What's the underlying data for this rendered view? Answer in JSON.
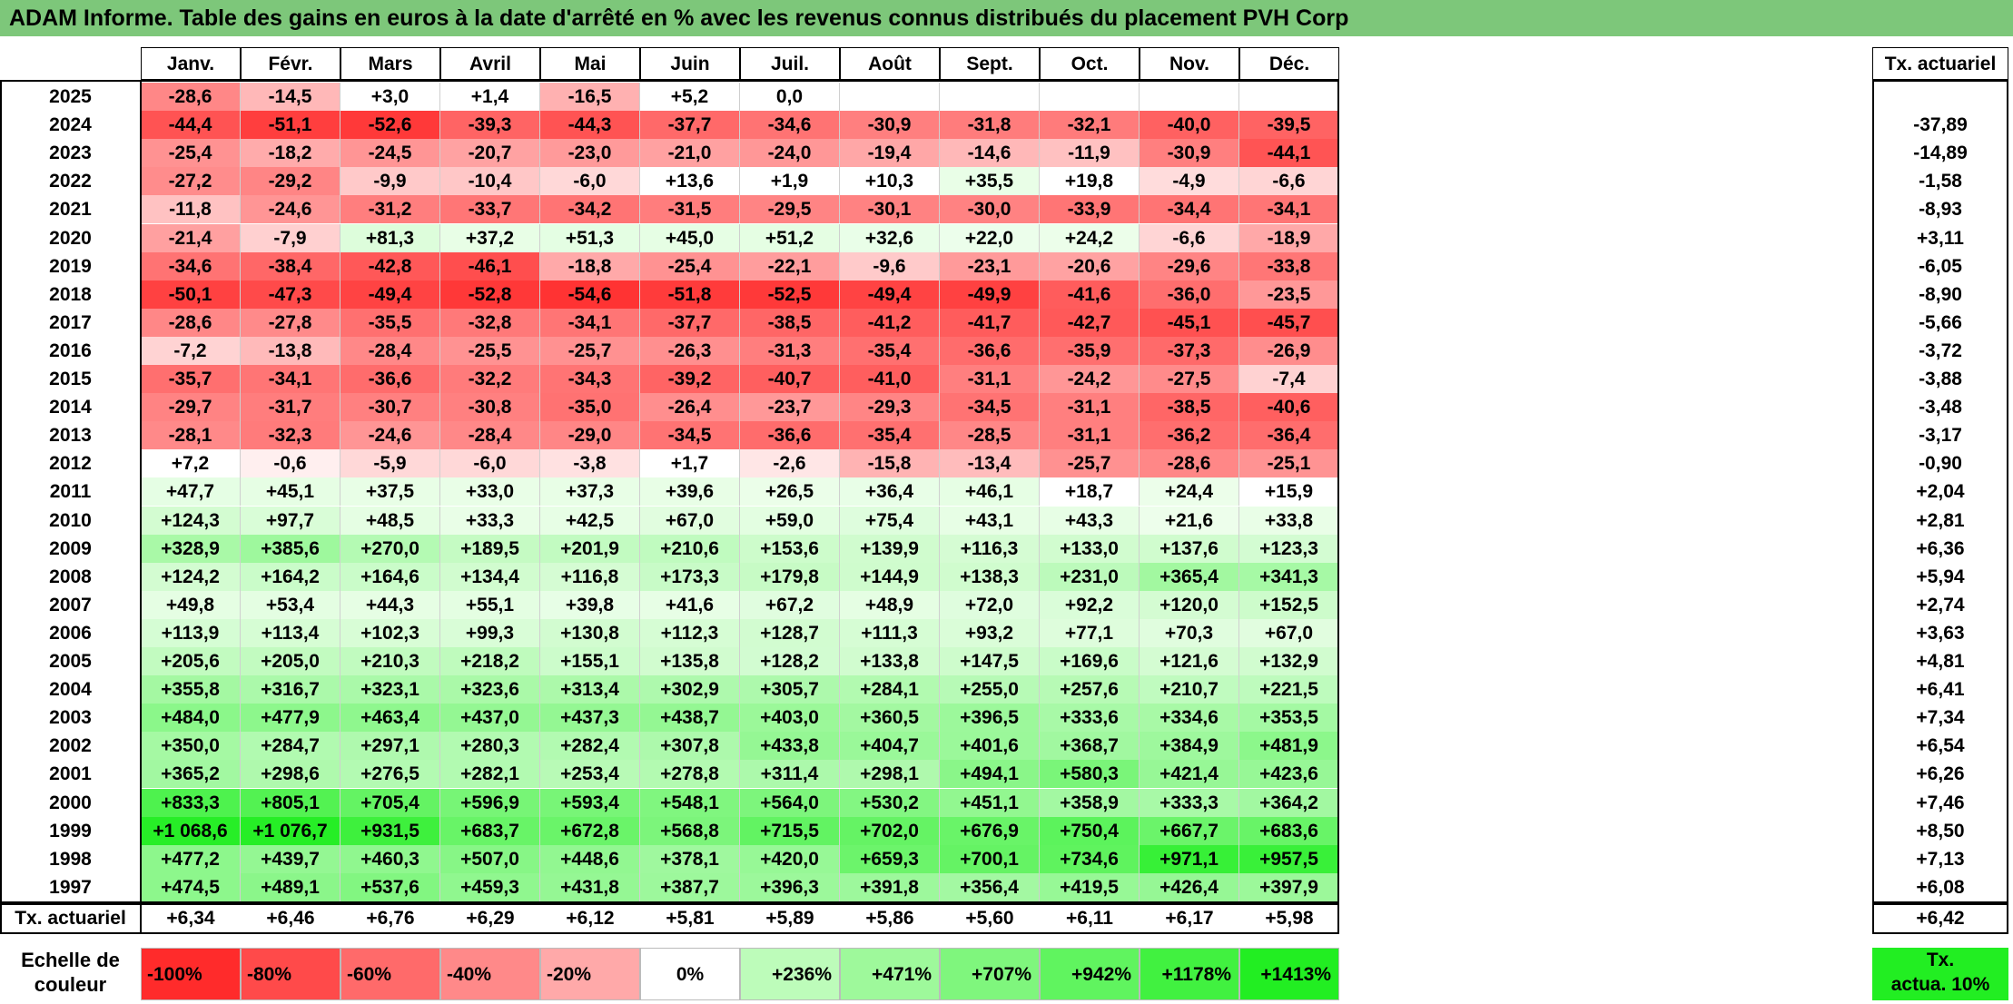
{
  "title": "ADAM Informe. Table des gains en euros à la date d'arrêté en % avec les revenus connus distribués du placement PVH Corp",
  "chart_data": {
    "type": "heatmap",
    "title": "ADAM Informe. Table des gains en euros à la date d'arrêté en % avec les revenus connus distribués du placement PVH Corp",
    "columns": [
      "Janv.",
      "Févr.",
      "Mars",
      "Avril",
      "Mai",
      "Juin",
      "Juil.",
      "Août",
      "Sept.",
      "Oct.",
      "Nov.",
      "Déc."
    ],
    "rate_header": "Tx. actuariel",
    "rows": [
      {
        "year": "2025",
        "values": [
          "-28,6",
          "-14,5",
          "+3,0",
          "+1,4",
          "-16,5",
          "+5,2",
          "0,0",
          "",
          "",
          "",
          "",
          ""
        ],
        "rate": ""
      },
      {
        "year": "2024",
        "values": [
          "-44,4",
          "-51,1",
          "-52,6",
          "-39,3",
          "-44,3",
          "-37,7",
          "-34,6",
          "-30,9",
          "-31,8",
          "-32,1",
          "-40,0",
          "-39,5"
        ],
        "rate": "-37,89"
      },
      {
        "year": "2023",
        "values": [
          "-25,4",
          "-18,2",
          "-24,5",
          "-20,7",
          "-23,0",
          "-21,0",
          "-24,0",
          "-19,4",
          "-14,6",
          "-11,9",
          "-30,9",
          "-44,1"
        ],
        "rate": "-14,89"
      },
      {
        "year": "2022",
        "values": [
          "-27,2",
          "-29,2",
          "-9,9",
          "-10,4",
          "-6,0",
          "+13,6",
          "+1,9",
          "+10,3",
          "+35,5",
          "+19,8",
          "-4,9",
          "-6,6"
        ],
        "rate": "-1,58"
      },
      {
        "year": "2021",
        "values": [
          "-11,8",
          "-24,6",
          "-31,2",
          "-33,7",
          "-34,2",
          "-31,5",
          "-29,5",
          "-30,1",
          "-30,0",
          "-33,9",
          "-34,4",
          "-34,1"
        ],
        "rate": "-8,93"
      },
      {
        "year": "2020",
        "values": [
          "-21,4",
          "-7,9",
          "+81,3",
          "+37,2",
          "+51,3",
          "+45,0",
          "+51,2",
          "+32,6",
          "+22,0",
          "+24,2",
          "-6,6",
          "-18,9"
        ],
        "rate": "+3,11"
      },
      {
        "year": "2019",
        "values": [
          "-34,6",
          "-38,4",
          "-42,8",
          "-46,1",
          "-18,8",
          "-25,4",
          "-22,1",
          "-9,6",
          "-23,1",
          "-20,6",
          "-29,6",
          "-33,8"
        ],
        "rate": "-6,05"
      },
      {
        "year": "2018",
        "values": [
          "-50,1",
          "-47,3",
          "-49,4",
          "-52,8",
          "-54,6",
          "-51,8",
          "-52,5",
          "-49,4",
          "-49,9",
          "-41,6",
          "-36,0",
          "-23,5"
        ],
        "rate": "-8,90"
      },
      {
        "year": "2017",
        "values": [
          "-28,6",
          "-27,8",
          "-35,5",
          "-32,8",
          "-34,1",
          "-37,7",
          "-38,5",
          "-41,2",
          "-41,7",
          "-42,7",
          "-45,1",
          "-45,7"
        ],
        "rate": "-5,66"
      },
      {
        "year": "2016",
        "values": [
          "-7,2",
          "-13,8",
          "-28,4",
          "-25,5",
          "-25,7",
          "-26,3",
          "-31,3",
          "-35,4",
          "-36,6",
          "-35,9",
          "-37,3",
          "-26,9"
        ],
        "rate": "-3,72"
      },
      {
        "year": "2015",
        "values": [
          "-35,7",
          "-34,1",
          "-36,6",
          "-32,2",
          "-34,3",
          "-39,2",
          "-40,7",
          "-41,0",
          "-31,1",
          "-24,2",
          "-27,5",
          "-7,4"
        ],
        "rate": "-3,88"
      },
      {
        "year": "2014",
        "values": [
          "-29,7",
          "-31,7",
          "-30,7",
          "-30,8",
          "-35,0",
          "-26,4",
          "-23,7",
          "-29,3",
          "-34,5",
          "-31,1",
          "-38,5",
          "-40,6"
        ],
        "rate": "-3,48"
      },
      {
        "year": "2013",
        "values": [
          "-28,1",
          "-32,3",
          "-24,6",
          "-28,4",
          "-29,0",
          "-34,5",
          "-36,6",
          "-35,4",
          "-28,5",
          "-31,1",
          "-36,2",
          "-36,4"
        ],
        "rate": "-3,17"
      },
      {
        "year": "2012",
        "values": [
          "+7,2",
          "-0,6",
          "-5,9",
          "-6,0",
          "-3,8",
          "+1,7",
          "-2,6",
          "-15,8",
          "-13,4",
          "-25,7",
          "-28,6",
          "-25,1"
        ],
        "rate": "-0,90"
      },
      {
        "year": "2011",
        "values": [
          "+47,7",
          "+45,1",
          "+37,5",
          "+33,0",
          "+37,3",
          "+39,6",
          "+26,5",
          "+36,4",
          "+46,1",
          "+18,7",
          "+24,4",
          "+15,9"
        ],
        "rate": "+2,04"
      },
      {
        "year": "2010",
        "values": [
          "+124,3",
          "+97,7",
          "+48,5",
          "+33,3",
          "+42,5",
          "+67,0",
          "+59,0",
          "+75,4",
          "+43,1",
          "+43,3",
          "+21,6",
          "+33,8"
        ],
        "rate": "+2,81"
      },
      {
        "year": "2009",
        "values": [
          "+328,9",
          "+385,6",
          "+270,0",
          "+189,5",
          "+201,9",
          "+210,6",
          "+153,6",
          "+139,9",
          "+116,3",
          "+133,0",
          "+137,6",
          "+123,3"
        ],
        "rate": "+6,36"
      },
      {
        "year": "2008",
        "values": [
          "+124,2",
          "+164,2",
          "+164,6",
          "+134,4",
          "+116,8",
          "+173,3",
          "+179,8",
          "+144,9",
          "+138,3",
          "+231,0",
          "+365,4",
          "+341,3"
        ],
        "rate": "+5,94"
      },
      {
        "year": "2007",
        "values": [
          "+49,8",
          "+53,4",
          "+44,3",
          "+55,1",
          "+39,8",
          "+41,6",
          "+67,2",
          "+48,9",
          "+72,0",
          "+92,2",
          "+120,0",
          "+152,5"
        ],
        "rate": "+2,74"
      },
      {
        "year": "2006",
        "values": [
          "+113,9",
          "+113,4",
          "+102,3",
          "+99,3",
          "+130,8",
          "+112,3",
          "+128,7",
          "+111,3",
          "+93,2",
          "+77,1",
          "+70,3",
          "+67,0"
        ],
        "rate": "+3,63"
      },
      {
        "year": "2005",
        "values": [
          "+205,6",
          "+205,0",
          "+210,3",
          "+218,2",
          "+155,1",
          "+135,8",
          "+128,2",
          "+133,8",
          "+147,5",
          "+169,6",
          "+121,6",
          "+132,9"
        ],
        "rate": "+4,81"
      },
      {
        "year": "2004",
        "values": [
          "+355,8",
          "+316,7",
          "+323,1",
          "+323,6",
          "+313,4",
          "+302,9",
          "+305,7",
          "+284,1",
          "+255,0",
          "+257,6",
          "+210,7",
          "+221,5"
        ],
        "rate": "+6,41"
      },
      {
        "year": "2003",
        "values": [
          "+484,0",
          "+477,9",
          "+463,4",
          "+437,0",
          "+437,3",
          "+438,7",
          "+403,0",
          "+360,5",
          "+396,5",
          "+333,6",
          "+334,6",
          "+353,5"
        ],
        "rate": "+7,34"
      },
      {
        "year": "2002",
        "values": [
          "+350,0",
          "+284,7",
          "+297,1",
          "+280,3",
          "+282,4",
          "+307,8",
          "+433,8",
          "+404,7",
          "+401,6",
          "+368,7",
          "+384,9",
          "+481,9"
        ],
        "rate": "+6,54"
      },
      {
        "year": "2001",
        "values": [
          "+365,2",
          "+298,6",
          "+276,5",
          "+282,1",
          "+253,4",
          "+278,8",
          "+311,4",
          "+298,1",
          "+494,1",
          "+580,3",
          "+421,4",
          "+423,6"
        ],
        "rate": "+6,26"
      },
      {
        "year": "2000",
        "values": [
          "+833,3",
          "+805,1",
          "+705,4",
          "+596,9",
          "+593,4",
          "+548,1",
          "+564,0",
          "+530,2",
          "+451,1",
          "+358,9",
          "+333,3",
          "+364,2"
        ],
        "rate": "+7,46"
      },
      {
        "year": "1999",
        "values": [
          "+1 068,6",
          "+1 076,7",
          "+931,5",
          "+683,7",
          "+672,8",
          "+568,8",
          "+715,5",
          "+702,0",
          "+676,9",
          "+750,4",
          "+667,7",
          "+683,6"
        ],
        "rate": "+8,50"
      },
      {
        "year": "1998",
        "values": [
          "+477,2",
          "+439,7",
          "+460,3",
          "+507,0",
          "+448,6",
          "+378,1",
          "+420,0",
          "+659,3",
          "+700,1",
          "+734,6",
          "+971,1",
          "+957,5"
        ],
        "rate": "+7,13"
      },
      {
        "year": "1997",
        "values": [
          "+474,5",
          "+489,1",
          "+537,6",
          "+459,3",
          "+431,8",
          "+387,7",
          "+396,3",
          "+391,8",
          "+356,4",
          "+419,5",
          "+426,4",
          "+397,9"
        ],
        "rate": "+6,08"
      }
    ],
    "footer": {
      "label": "Tx. actuariel",
      "values": [
        "+6,34",
        "+6,46",
        "+6,76",
        "+6,29",
        "+6,12",
        "+5,81",
        "+5,89",
        "+5,86",
        "+5,60",
        "+6,11",
        "+6,17",
        "+5,98"
      ],
      "rate": "+6,42"
    },
    "color_scale": {
      "label_line1": "Echelle de",
      "label_line2": "couleur",
      "stops": [
        {
          "label": "-100%",
          "value": -100
        },
        {
          "label": "-80%",
          "value": -80
        },
        {
          "label": "-60%",
          "value": -60
        },
        {
          "label": "-40%",
          "value": -40
        },
        {
          "label": "-20%",
          "value": -20
        },
        {
          "label": "0%",
          "value": 0
        },
        {
          "label": "+236%",
          "value": 236
        },
        {
          "label": "+471%",
          "value": 471
        },
        {
          "label": "+707%",
          "value": 707
        },
        {
          "label": "+942%",
          "value": 942
        },
        {
          "label": "+1178%",
          "value": 1178
        },
        {
          "label": "+1413%",
          "value": 1413
        }
      ],
      "rate_label_line1": "Tx.",
      "rate_label_line2": "actua. 10%"
    },
    "colors": {
      "title_bg": "#7dc77a",
      "negative_max": "#ff2b2b",
      "neutral": "#ffffff",
      "positive_max": "#22ee22"
    }
  }
}
